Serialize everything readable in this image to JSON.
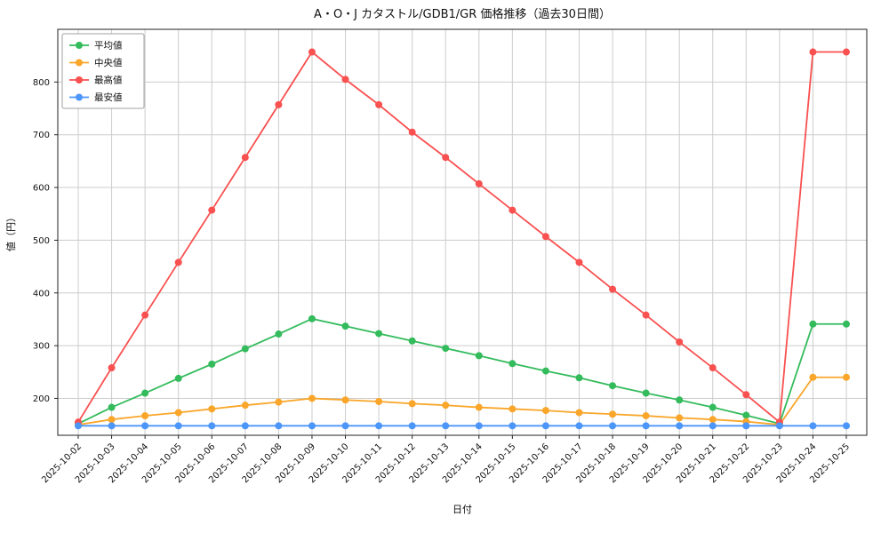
{
  "chart_data": {
    "type": "line",
    "title": "A・O・J カタストル/GDB1/GR 価格推移（過去30日間）",
    "xlabel": "日付",
    "ylabel": "値（円）",
    "categories": [
      "2025-10-02",
      "2025-10-03",
      "2025-10-04",
      "2025-10-05",
      "2025-10-06",
      "2025-10-07",
      "2025-10-08",
      "2025-10-09",
      "2025-10-10",
      "2025-10-11",
      "2025-10-12",
      "2025-10-13",
      "2025-10-14",
      "2025-10-15",
      "2025-10-16",
      "2025-10-17",
      "2025-10-18",
      "2025-10-19",
      "2025-10-20",
      "2025-10-21",
      "2025-10-22",
      "2025-10-23",
      "2025-10-24",
      "2025-10-25"
    ],
    "series": [
      {
        "key": "mean",
        "name": "平均値",
        "color": "#33bb5c",
        "values": [
          152,
          183,
          210,
          238,
          265,
          294,
          322,
          351,
          337,
          323,
          309,
          295,
          281,
          266,
          252,
          239,
          224,
          210,
          197,
          183,
          168,
          152,
          341,
          341
        ]
      },
      {
        "key": "median",
        "name": "中央値",
        "color": "#f9a62a",
        "values": [
          150,
          160,
          167,
          173,
          180,
          187,
          193,
          200,
          197,
          194,
          190,
          187,
          183,
          180,
          177,
          173,
          170,
          167,
          163,
          160,
          156,
          150,
          240,
          240
        ]
      },
      {
        "key": "max",
        "name": "最高値",
        "color": "#f95050",
        "values": [
          155,
          258,
          358,
          458,
          557,
          657,
          757,
          857,
          805,
          757,
          705,
          657,
          607,
          557,
          507,
          458,
          407,
          358,
          307,
          258,
          207,
          155,
          857,
          857
        ]
      },
      {
        "key": "min",
        "name": "最安値",
        "color": "#4d96f9",
        "values": [
          148,
          148,
          148,
          148,
          148,
          148,
          148,
          148,
          148,
          148,
          148,
          148,
          148,
          148,
          148,
          148,
          148,
          148,
          148,
          148,
          148,
          148,
          148,
          148
        ]
      }
    ],
    "ylim": [
      130,
      900
    ],
    "yticks": [
      200,
      300,
      400,
      500,
      600,
      700,
      800
    ],
    "grid": true,
    "legend_position": "upper-left",
    "grid_color": "#cccccc",
    "border_color": "#222222"
  }
}
